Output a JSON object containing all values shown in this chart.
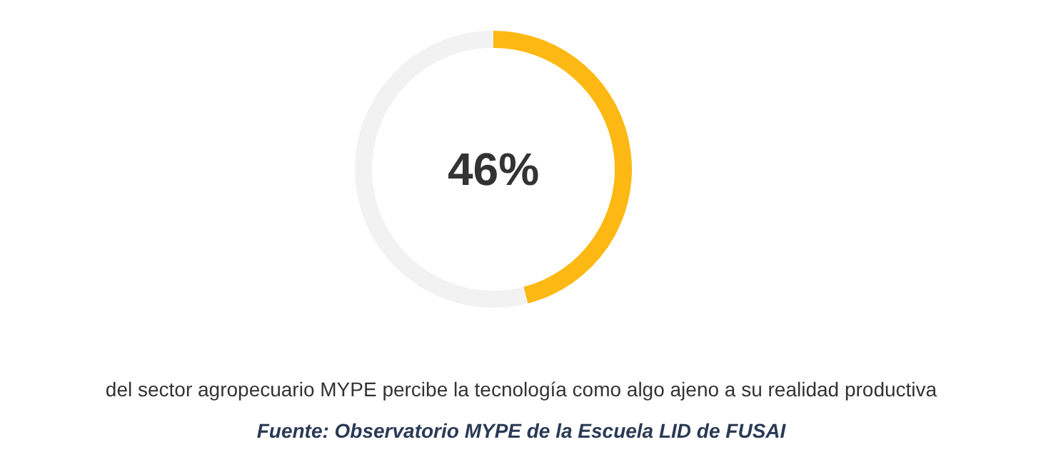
{
  "chart_data": {
    "type": "donut",
    "categories": [
      null,
      null
    ],
    "values": [
      46,
      54
    ],
    "colors": [
      "#fdb813",
      "#f2f2f2"
    ],
    "value_labels": [
      "46%",
      null
    ],
    "annotations": [
      "del sector agropecuario MYPE percibe la tecnología como algo ajeno a su realidad productiva",
      "Fuente: Observatorio MYPE de la Escuela LID de FUSAI"
    ]
  }
}
